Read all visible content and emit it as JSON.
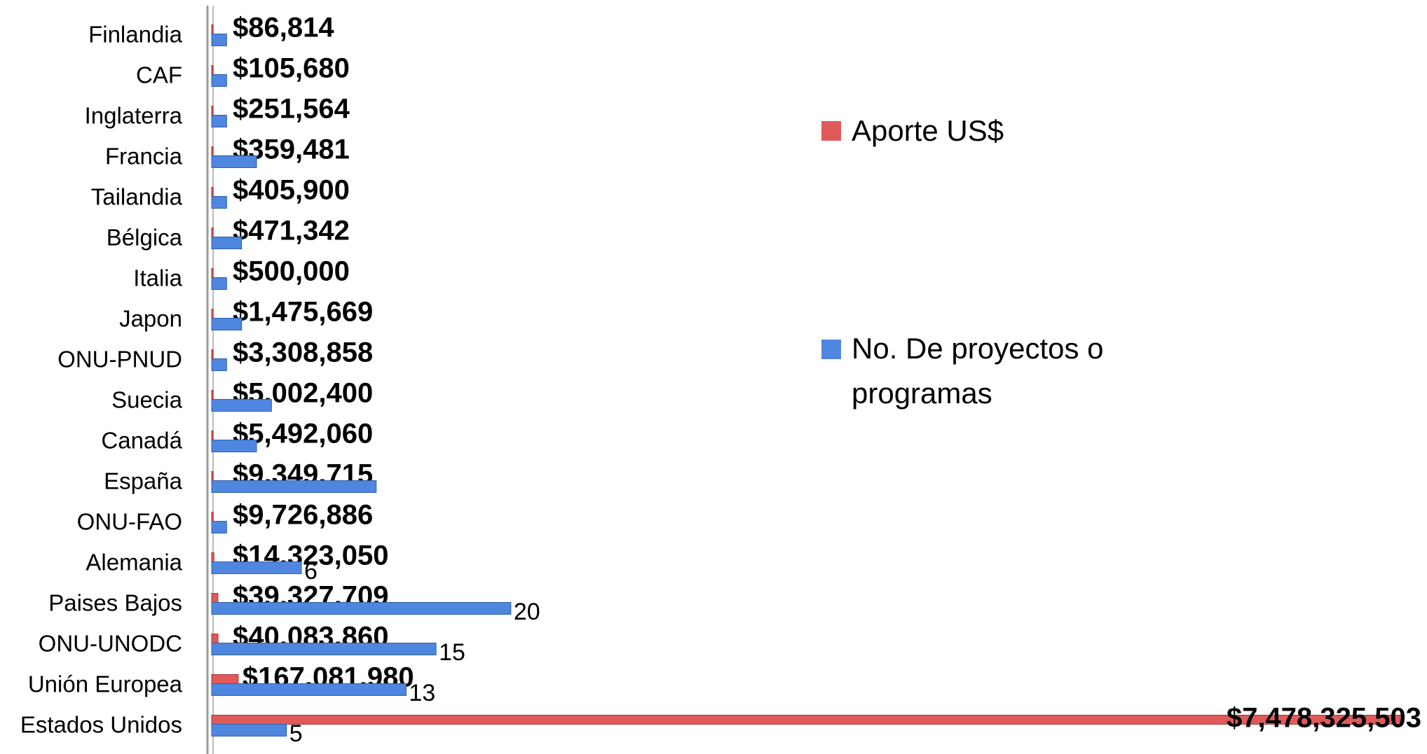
{
  "chart_data": {
    "type": "bar",
    "orientation": "horizontal",
    "categories": [
      "Finlandia",
      "CAF",
      "Inglaterra",
      "Francia",
      "Tailandia",
      "Bélgica",
      "Italia",
      "Japon",
      "ONU-PNUD",
      "Suecia",
      "Canadá",
      "España",
      "ONU-FAO",
      "Alemania",
      "Paises Bajos",
      "ONU-UNODC",
      "Unión Europea",
      "Estados Unidos"
    ],
    "series": [
      {
        "name": "Aporte US$",
        "color": "#e05a5a",
        "values": [
          86814,
          105680,
          251564,
          359481,
          405900,
          471342,
          500000,
          1475669,
          3308858,
          5002400,
          5492060,
          9349715,
          9726886,
          14323050,
          39327709,
          40083860,
          167081980,
          7478325503
        ],
        "value_labels": [
          "$86,814",
          "$105,680",
          "$251,564",
          "$359,481",
          "$405,900",
          "$471,342",
          "$500,000",
          "$1,475,669",
          "$3,308,858",
          "$5,002,400",
          "$5,492,060",
          "$9,349,715",
          "$9,726,886",
          "$14,323,050",
          "$39,327,709",
          "$40,083,860",
          "$167,081,980",
          "$7,478,325,503"
        ]
      },
      {
        "name": "No. De proyectos o programas",
        "color": "#4f86e0",
        "axis": "x2",
        "values": [
          1,
          1,
          1,
          3,
          1,
          2,
          1,
          2,
          1,
          4,
          3,
          11,
          1,
          6,
          20,
          15,
          13,
          5
        ],
        "value_labels": [
          null,
          null,
          null,
          null,
          null,
          null,
          null,
          null,
          null,
          null,
          null,
          null,
          null,
          "6",
          "20",
          "15",
          "13",
          "5"
        ]
      }
    ],
    "xlim": [
      0,
      8000000000
    ],
    "x2lim": [
      0,
      85
    ]
  }
}
